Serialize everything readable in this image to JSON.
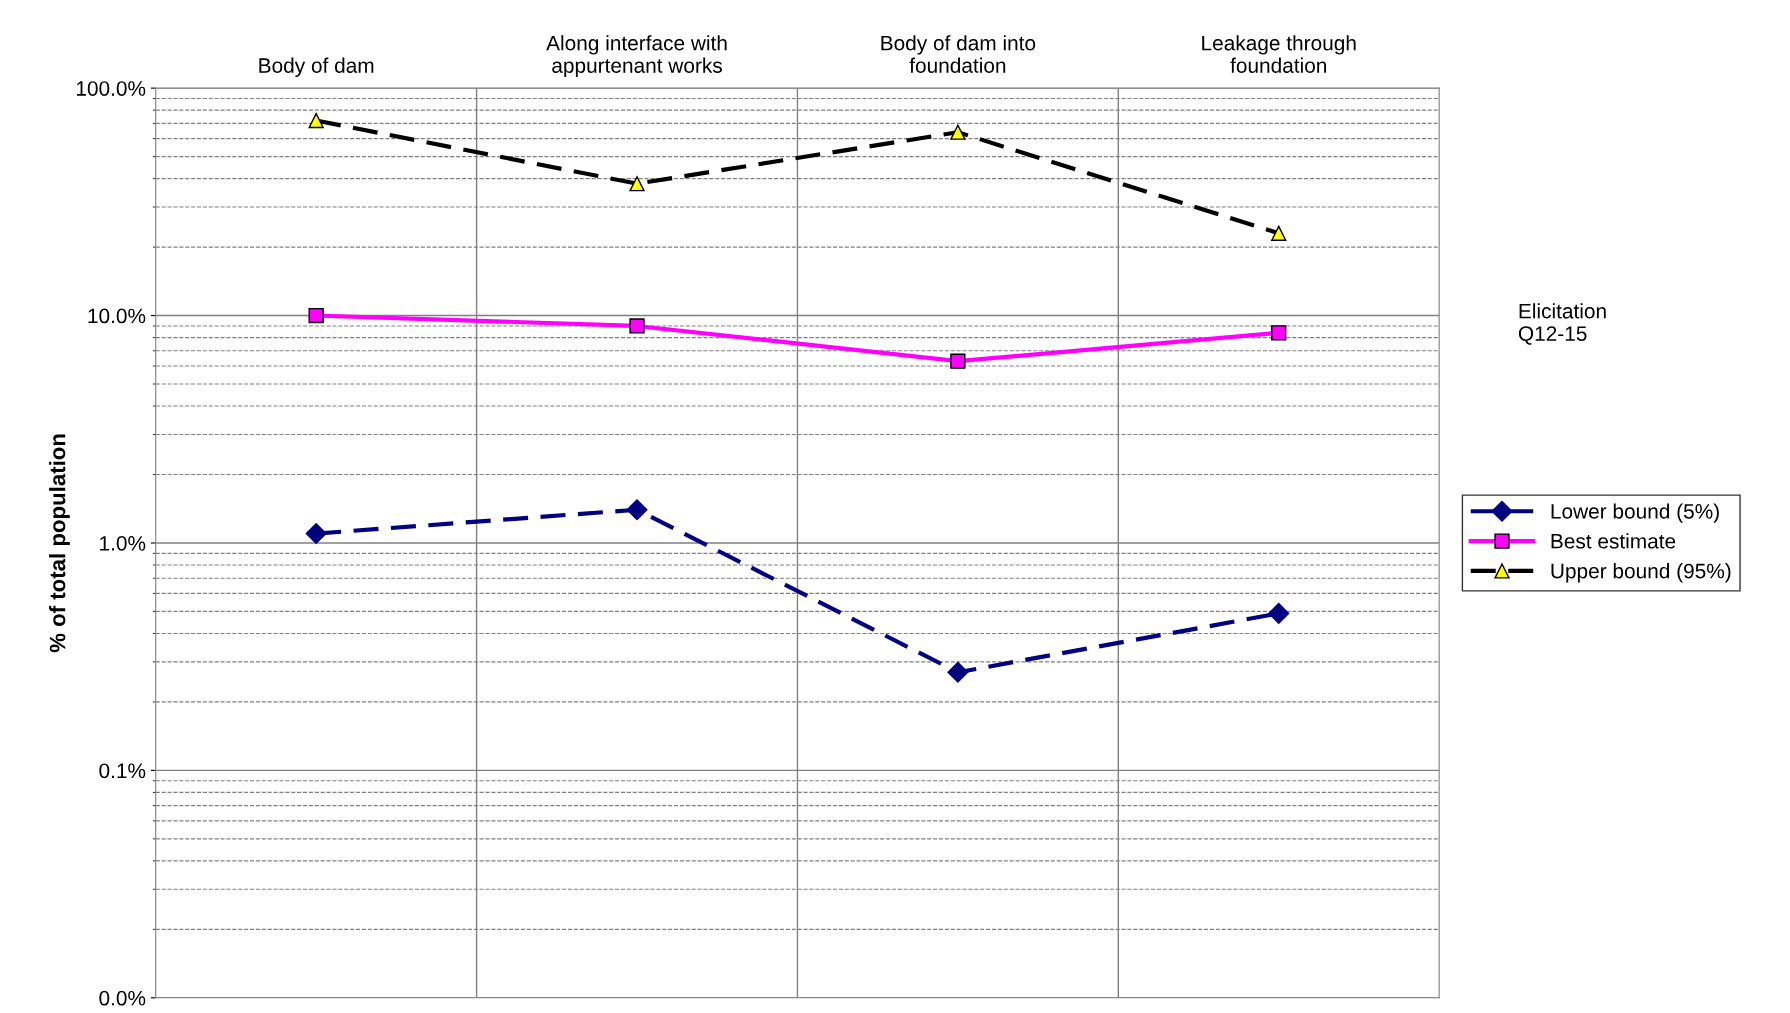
{
  "chart_data": {
    "type": "line",
    "ylabel": "% of total population",
    "categories": [
      "Body of dam",
      "Along interface with\nappurtenant works",
      "Body of dam into\nfoundation",
      "Leakage through\nfoundation"
    ],
    "series": [
      {
        "name": "Lower bound (5%)",
        "color": "#000080",
        "marker": "diamond",
        "line_style": "dashed",
        "values": [
          1.1,
          1.4,
          0.27,
          0.49
        ]
      },
      {
        "name": "Best estimate",
        "color": "#ff00ff",
        "marker": "square",
        "line_style": "solid",
        "values": [
          10,
          9.0,
          6.3,
          8.4
        ]
      },
      {
        "name": "Upper bound (95%)",
        "color": "#000000",
        "marker": "triangle",
        "line_style": "dashed",
        "values": [
          72,
          38,
          64,
          23
        ]
      }
    ],
    "log": "y",
    "ylim": [
      0.01,
      100
    ],
    "yticks": [
      {
        "value": 0.01,
        "label": "0.0%"
      },
      {
        "value": 0.1,
        "label": "0.1%"
      },
      {
        "value": 1,
        "label": "1.0%"
      },
      {
        "value": 10,
        "label": "10.0%"
      },
      {
        "value": 100,
        "label": "100.0%"
      }
    ],
    "grid": true,
    "legend": "right",
    "annotations": [
      "Elicitation\nQ12-15"
    ]
  }
}
